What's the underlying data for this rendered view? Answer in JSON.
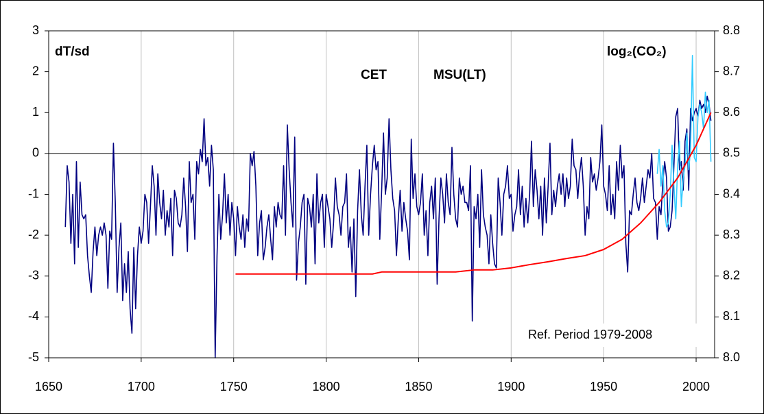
{
  "chart_data": {
    "type": "line",
    "y_axis_label": "dT/sd",
    "annotation": "Ref. Period 1979-2008",
    "xlim": [
      1650,
      2010
    ],
    "xticks": [
      1650,
      1700,
      1750,
      1800,
      1850,
      1900,
      1950,
      2000
    ],
    "ylim": [
      -5,
      3
    ],
    "yticks": [
      -5,
      -4,
      -3,
      -2,
      -1,
      0,
      1,
      2,
      3
    ],
    "y2lim": [
      8.0,
      8.8
    ],
    "y2ticks": [
      {
        "value": 8,
        "label": "8.0"
      },
      8.1,
      8.2,
      8.3,
      8.4,
      8.5,
      8.6,
      8.7,
      8.8
    ],
    "x_grid": true,
    "zero_line": true,
    "series": [
      {
        "name": "CET",
        "color": "#000080",
        "x": [
          1659,
          1660,
          1661,
          1662,
          1663,
          1664,
          1665,
          1666,
          1667,
          1668,
          1669,
          1670,
          1671,
          1672,
          1673,
          1674,
          1675,
          1676,
          1677,
          1678,
          1679,
          1680,
          1681,
          1682,
          1683,
          1684,
          1685,
          1686,
          1687,
          1688,
          1689,
          1690,
          1691,
          1692,
          1693,
          1694,
          1695,
          1696,
          1697,
          1698,
          1699,
          1700,
          1701,
          1702,
          1703,
          1704,
          1705,
          1706,
          1707,
          1708,
          1709,
          1710,
          1711,
          1712,
          1713,
          1714,
          1715,
          1716,
          1717,
          1718,
          1719,
          1720,
          1721,
          1722,
          1723,
          1724,
          1725,
          1726,
          1727,
          1728,
          1729,
          1730,
          1731,
          1732,
          1733,
          1734,
          1735,
          1736,
          1737,
          1738,
          1739,
          1740,
          1741,
          1742,
          1743,
          1744,
          1745,
          1746,
          1747,
          1748,
          1749,
          1750,
          1751,
          1752,
          1753,
          1754,
          1755,
          1756,
          1757,
          1758,
          1759,
          1760,
          1761,
          1762,
          1763,
          1764,
          1765,
          1766,
          1767,
          1768,
          1769,
          1770,
          1771,
          1772,
          1773,
          1774,
          1775,
          1776,
          1777,
          1778,
          1779,
          1780,
          1781,
          1782,
          1783,
          1784,
          1785,
          1786,
          1787,
          1788,
          1789,
          1790,
          1791,
          1792,
          1793,
          1794,
          1795,
          1796,
          1797,
          1798,
          1799,
          1800,
          1801,
          1802,
          1803,
          1804,
          1805,
          1806,
          1807,
          1808,
          1809,
          1810,
          1811,
          1812,
          1813,
          1814,
          1815,
          1816,
          1817,
          1818,
          1819,
          1820,
          1821,
          1822,
          1823,
          1824,
          1825,
          1826,
          1827,
          1828,
          1829,
          1830,
          1831,
          1832,
          1833,
          1834,
          1835,
          1836,
          1837,
          1838,
          1839,
          1840,
          1841,
          1842,
          1843,
          1844,
          1845,
          1846,
          1847,
          1848,
          1849,
          1850,
          1851,
          1852,
          1853,
          1854,
          1855,
          1856,
          1857,
          1858,
          1859,
          1860,
          1861,
          1862,
          1863,
          1864,
          1865,
          1866,
          1867,
          1868,
          1869,
          1870,
          1871,
          1872,
          1873,
          1874,
          1875,
          1876,
          1877,
          1878,
          1879,
          1880,
          1881,
          1882,
          1883,
          1884,
          1885,
          1886,
          1887,
          1888,
          1889,
          1890,
          1891,
          1892,
          1893,
          1894,
          1895,
          1896,
          1897,
          1898,
          1899,
          1900,
          1901,
          1902,
          1903,
          1904,
          1905,
          1906,
          1907,
          1908,
          1909,
          1910,
          1911,
          1912,
          1913,
          1914,
          1915,
          1916,
          1917,
          1918,
          1919,
          1920,
          1921,
          1922,
          1923,
          1924,
          1925,
          1926,
          1927,
          1928,
          1929,
          1930,
          1931,
          1932,
          1933,
          1934,
          1935,
          1936,
          1937,
          1938,
          1939,
          1940,
          1941,
          1942,
          1943,
          1944,
          1945,
          1946,
          1947,
          1948,
          1949,
          1950,
          1951,
          1952,
          1953,
          1954,
          1955,
          1956,
          1957,
          1958,
          1959,
          1960,
          1961,
          1962,
          1963,
          1964,
          1965,
          1966,
          1967,
          1968,
          1969,
          1970,
          1971,
          1972,
          1973,
          1974,
          1975,
          1976,
          1977,
          1978,
          1979,
          1980,
          1981,
          1982,
          1983,
          1984,
          1985,
          1986,
          1987,
          1988,
          1989,
          1990,
          1991,
          1992,
          1993,
          1994,
          1995,
          1996,
          1997,
          1998,
          1999,
          2000,
          2001,
          2002,
          2003,
          2004,
          2005,
          2006,
          2007,
          2008
        ],
        "values": [
          -1.8,
          -0.3,
          -0.7,
          -2.2,
          -1.0,
          -2.7,
          -0.2,
          -2.3,
          -0.7,
          -1.5,
          -1.6,
          -1.5,
          -2.5,
          -3.0,
          -3.4,
          -2.4,
          -1.8,
          -2.5,
          -2.0,
          -1.8,
          -2.0,
          -1.7,
          -2.0,
          -3.3,
          -1.9,
          -2.1,
          0.25,
          -1.2,
          -3.4,
          -2.3,
          -1.7,
          -3.6,
          -2.7,
          -3.4,
          -2.4,
          -3.8,
          -4.4,
          -2.3,
          -3.8,
          -2.5,
          -1.8,
          -2.2,
          -1.9,
          -1.0,
          -1.2,
          -2.2,
          -1.3,
          -0.3,
          -0.8,
          -2.0,
          -0.5,
          -1.2,
          -1.6,
          -0.9,
          -2.0,
          -1.4,
          -1.8,
          -1.1,
          -2.5,
          -0.9,
          -1.1,
          -1.7,
          -1.8,
          -1.5,
          -0.6,
          -1.3,
          -2.4,
          -0.2,
          -1.2,
          -1.0,
          -2.1,
          -0.2,
          -0.5,
          0.1,
          -0.2,
          0.85,
          -0.3,
          -0.1,
          -0.8,
          0.2,
          -0.4,
          -5.0,
          -2.5,
          -1.0,
          -2.1,
          -1.5,
          -0.5,
          -1.7,
          -1.0,
          -2.0,
          -1.2,
          -1.6,
          -2.5,
          -1.3,
          -1.8,
          -2.1,
          -1.5,
          -2.3,
          -1.6,
          -1.9,
          0.0,
          -0.3,
          0.05,
          -0.8,
          -2.5,
          -1.7,
          -1.4,
          -2.6,
          -2.3,
          -1.8,
          -1.5,
          -2.1,
          -2.6,
          -1.3,
          -1.8,
          -1.2,
          -1.5,
          -1.6,
          -0.3,
          -2.0,
          0.7,
          -0.4,
          -1.2,
          -1.8,
          0.4,
          -3.1,
          -2.2,
          -1.8,
          -1.2,
          -1.0,
          -3.2,
          -1.1,
          -1.3,
          -1.8,
          -1.0,
          -2.7,
          -0.5,
          -1.7,
          -1.2,
          -1.0,
          -2.3,
          -1.0,
          -1.3,
          -1.6,
          -2.3,
          -1.7,
          -0.6,
          -1.3,
          -1.5,
          -2.0,
          -1.3,
          -1.2,
          -0.5,
          -2.3,
          -1.8,
          -2.9,
          -1.6,
          -3.5,
          -1.4,
          -0.4,
          -1.5,
          -2.0,
          -0.8,
          0.2,
          -2.0,
          -1.0,
          -0.3,
          0.2,
          -0.4,
          -0.2,
          -2.1,
          -0.9,
          0.5,
          -1.0,
          -0.6,
          0.85,
          -0.4,
          -1.1,
          -1.4,
          -2.5,
          -1.6,
          -0.9,
          -1.9,
          -1.2,
          -1.6,
          -1.9,
          -2.6,
          0.35,
          -1.1,
          -0.5,
          -1.3,
          -1.5,
          -1.2,
          -0.5,
          -2.0,
          -1.4,
          -2.5,
          -1.2,
          -0.8,
          -1.6,
          -0.6,
          -3.2,
          -1.6,
          -0.6,
          -1.0,
          -1.7,
          -0.5,
          -1.2,
          -1.5,
          0.15,
          -1.0,
          -1.6,
          -1.8,
          -0.6,
          -1.0,
          -0.8,
          -1.2,
          -1.2,
          -1.4,
          -0.3,
          -4.1,
          -1.3,
          -1.6,
          -1.0,
          -2.3,
          -0.4,
          -1.5,
          -1.8,
          -2.0,
          -2.7,
          -1.5,
          -2.2,
          -2.7,
          -2.8,
          -0.6,
          -1.2,
          -2.0,
          -1.0,
          -0.8,
          -0.3,
          -1.1,
          -1.0,
          -1.9,
          -1.5,
          -1.3,
          -0.4,
          -1.5,
          -0.8,
          -1.8,
          -1.1,
          -1.7,
          -1.0,
          0.3,
          -1.3,
          -0.4,
          -0.9,
          -1.6,
          -0.8,
          -2.0,
          -0.6,
          -1.7,
          -0.8,
          0.25,
          -1.5,
          -0.9,
          -1.3,
          -0.8,
          -0.5,
          -1.0,
          -0.5,
          -1.3,
          -0.6,
          -1.1,
          -0.8,
          0.35,
          -0.3,
          -0.4,
          -1.1,
          -0.5,
          -0.1,
          -0.8,
          -2.0,
          -1.3,
          -1.6,
          -0.1,
          -0.7,
          -0.5,
          -0.9,
          -0.6,
          -0.2,
          0.7,
          -0.8,
          -1.0,
          -1.4,
          -0.3,
          -1.5,
          -1.0,
          -1.6,
          -0.2,
          -0.9,
          0.2,
          -0.6,
          -0.3,
          -2.2,
          -2.9,
          -1.4,
          -1.5,
          -1.0,
          -0.6,
          -1.2,
          -1.4,
          -1.1,
          -0.6,
          -1.2,
          -0.8,
          -0.4,
          -0.6,
          0.0,
          -1.1,
          -1.2,
          -2.1,
          -1.3,
          -1.5,
          -0.7,
          -0.2,
          -0.6,
          -1.9,
          -1.8,
          -1.4,
          -0.3,
          0.9,
          1.1,
          -0.4,
          -0.2,
          -0.9,
          0.3,
          0.6,
          -0.9,
          1.1,
          0.8,
          1.0,
          1.1,
          0.9,
          1.3,
          1.1,
          1.2,
          1.0,
          1.4,
          1.2,
          0.8
        ]
      },
      {
        "name": "MSU(LT)",
        "color": "#33ccff",
        "x": [
          1979,
          1980,
          1981,
          1982,
          1983,
          1984,
          1985,
          1986,
          1987,
          1988,
          1989,
          1990,
          1991,
          1992,
          1993,
          1994,
          1995,
          1996,
          1997,
          1998,
          1999,
          2000,
          2001,
          2002,
          2003,
          2004,
          2005,
          2006,
          2007,
          2008
        ],
        "values": [
          -0.5,
          0.1,
          -0.8,
          -0.3,
          -1.4,
          -1.8,
          -1.7,
          -1.0,
          0.2,
          -0.8,
          -1.6,
          -0.3,
          0.3,
          -1.3,
          -0.6,
          -0.3,
          0.5,
          -0.4,
          0.1,
          2.4,
          -0.1,
          -0.2,
          0.9,
          1.2,
          1.0,
          0.6,
          1.5,
          1.0,
          1.3,
          -0.2
        ]
      },
      {
        "name": "log₂(CO₂)",
        "color": "#ff0000",
        "axis": "y2",
        "x": [
          1751,
          1800,
          1825,
          1830,
          1870,
          1880,
          1890,
          1900,
          1910,
          1920,
          1930,
          1940,
          1950,
          1960,
          1970,
          1980,
          1990,
          2000,
          2008
        ],
        "values": [
          8.205,
          8.205,
          8.205,
          8.21,
          8.21,
          8.215,
          8.215,
          8.22,
          8.228,
          8.235,
          8.243,
          8.25,
          8.265,
          8.29,
          8.33,
          8.38,
          8.44,
          8.52,
          8.6
        ]
      }
    ]
  }
}
